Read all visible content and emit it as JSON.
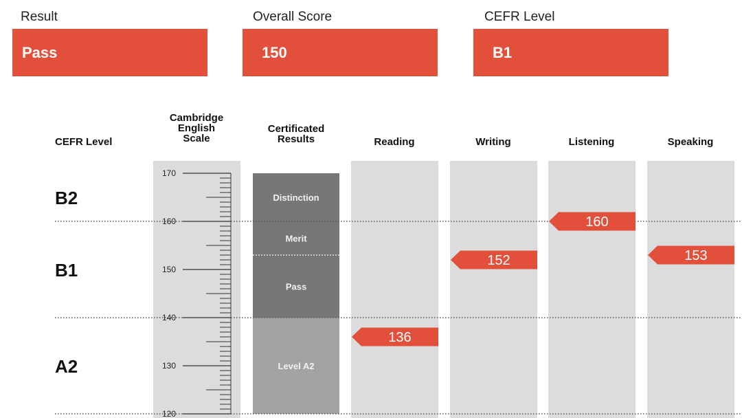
{
  "summary": {
    "result_label": "Result",
    "result_value": "Pass",
    "score_label": "Overall Score",
    "score_value": "150",
    "cefr_label": "CEFR Level",
    "cefr_value": "B1"
  },
  "colors": {
    "accent": "#e2503c",
    "column_bg": "#dcdcdc",
    "band_upper": "#777777",
    "band_lower": "#a3a3a3"
  },
  "chart_data": {
    "type": "bar",
    "ylim": [
      120,
      170
    ],
    "headers": {
      "cefr": "CEFR Level",
      "scale": [
        "Cambridge",
        "English",
        "Scale"
      ],
      "certificated": [
        "Certificated",
        "Results"
      ]
    },
    "scale_ticks": [
      170,
      160,
      150,
      140,
      130,
      120
    ],
    "cefr_levels": [
      {
        "label": "B2",
        "from": 160,
        "to": 170
      },
      {
        "label": "B1",
        "from": 140,
        "to": 160
      },
      {
        "label": "A2",
        "from": 120,
        "to": 140
      }
    ],
    "cefr_boundaries": [
      160,
      140,
      120
    ],
    "certificated_bands": [
      {
        "label": "Distinction",
        "from": 160,
        "to": 170
      },
      {
        "label": "Merit",
        "from": 153,
        "to": 160
      },
      {
        "label": "Pass",
        "from": 140,
        "to": 153
      },
      {
        "label": "Level A2",
        "from": 120,
        "to": 140
      }
    ],
    "skills": [
      {
        "name": "Reading",
        "value": 136
      },
      {
        "name": "Writing",
        "value": 152
      },
      {
        "name": "Listening",
        "value": 160
      },
      {
        "name": "Speaking",
        "value": 153
      }
    ]
  }
}
